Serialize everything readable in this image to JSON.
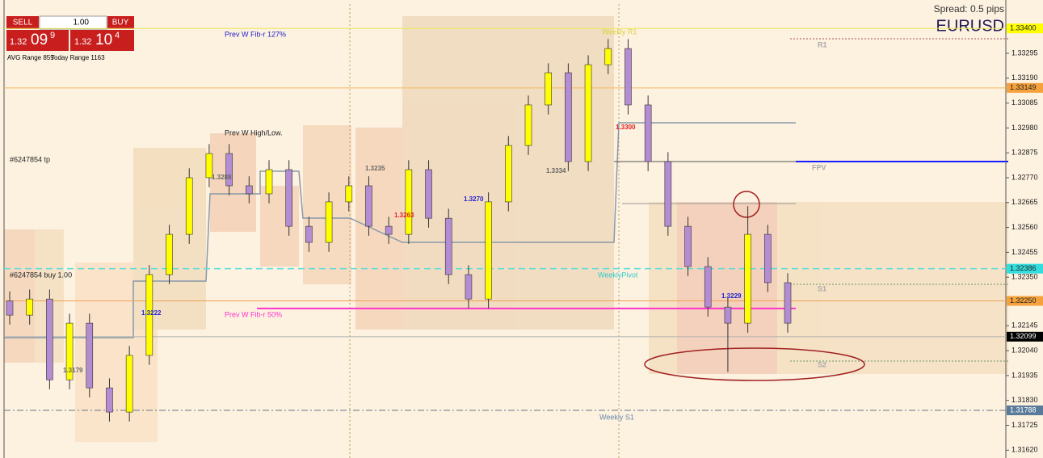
{
  "panel": {
    "sell": "SELL",
    "buy": "BUY",
    "lots": "1.00",
    "bid": {
      "prefix": "1.32",
      "big": "09",
      "sup": "9"
    },
    "ask": {
      "prefix": "1.32",
      "big": "10",
      "sup": "4"
    },
    "avg_range": "AVG Range 859",
    "today_range": "Today Range 1163"
  },
  "symbol": "EURUSD",
  "spread": "Spread: 0.5 pips",
  "chart_data": {
    "type": "candlestick",
    "ylim": [
      1.31587,
      1.3352
    ],
    "yticks": [
      {
        "value": 1.33295,
        "label": "1.33295"
      },
      {
        "value": 1.3319,
        "label": "1.33190"
      },
      {
        "value": 1.33085,
        "label": "1.33085"
      },
      {
        "value": 1.3298,
        "label": "1.32980"
      },
      {
        "value": 1.32875,
        "label": "1.32875"
      },
      {
        "value": 1.3277,
        "label": "1.32770"
      },
      {
        "value": 1.32665,
        "label": "1.32665"
      },
      {
        "value": 1.3256,
        "label": "1.32560"
      },
      {
        "value": 1.32455,
        "label": "1.32455"
      },
      {
        "value": 1.3235,
        "label": "1.32350"
      },
      {
        "value": 1.32145,
        "label": "1.32145"
      },
      {
        "value": 1.3204,
        "label": "1.32040"
      },
      {
        "value": 1.31935,
        "label": "1.31935"
      },
      {
        "value": 1.3183,
        "label": "1.31830"
      },
      {
        "value": 1.31725,
        "label": "1.31725"
      },
      {
        "value": 1.3162,
        "label": "1.31620"
      }
    ],
    "candles": {
      "open": [
        1.3225,
        1.3219,
        1.32258,
        1.31917,
        1.32156,
        1.31883,
        1.31781,
        1.3202,
        1.32361,
        1.32531,
        1.3277,
        1.32872,
        1.32736,
        1.32702,
        1.32804,
        1.32565,
        1.32497,
        1.32668,
        1.32736,
        1.32565,
        1.32531,
        1.32804,
        1.32599,
        1.32361,
        1.32258,
        1.32668,
        1.32906,
        1.33077,
        1.33213,
        1.32838,
        1.33247,
        1.33315,
        1.33077,
        1.32838,
        1.32565,
        1.32395,
        1.32224,
        1.32156,
        1.32531,
        1.32327
      ],
      "high": [
        1.3229,
        1.32298,
        1.32298,
        1.32196,
        1.32196,
        1.31923,
        1.3206,
        1.32401,
        1.32571,
        1.3281,
        1.32912,
        1.32912,
        1.32776,
        1.32844,
        1.32844,
        1.32605,
        1.32708,
        1.32776,
        1.32776,
        1.32605,
        1.32844,
        1.32844,
        1.32639,
        1.32401,
        1.32708,
        1.32946,
        1.33117,
        1.33253,
        1.33253,
        1.33287,
        1.33355,
        1.33355,
        1.33117,
        1.32878,
        1.32605,
        1.32435,
        1.32264,
        1.3265,
        1.32571,
        1.32367
      ],
      "low": [
        1.3215,
        1.3215,
        1.31877,
        1.31877,
        1.31843,
        1.31741,
        1.31741,
        1.3198,
        1.32321,
        1.32491,
        1.3273,
        1.32696,
        1.32662,
        1.32662,
        1.32525,
        1.32457,
        1.32457,
        1.32628,
        1.32525,
        1.32491,
        1.32491,
        1.32559,
        1.32321,
        1.32218,
        1.32218,
        1.32628,
        1.32866,
        1.33037,
        1.32798,
        1.32798,
        1.33207,
        1.33037,
        1.32798,
        1.32525,
        1.32355,
        1.32184,
        1.3195,
        1.32116,
        1.32287,
        1.32116
      ],
      "close": [
        1.3219,
        1.32258,
        1.31917,
        1.32156,
        1.31883,
        1.31781,
        1.3202,
        1.32361,
        1.32531,
        1.3277,
        1.32872,
        1.32736,
        1.32702,
        1.32804,
        1.32565,
        1.32497,
        1.32668,
        1.32736,
        1.32565,
        1.32531,
        1.32804,
        1.32599,
        1.32361,
        1.32258,
        1.32668,
        1.32906,
        1.33077,
        1.33213,
        1.32838,
        1.33247,
        1.33315,
        1.33077,
        1.32838,
        1.32565,
        1.32395,
        1.32224,
        1.32156,
        1.32531,
        1.32327,
        1.32156
      ],
      "up_color": "#ffff00",
      "down_color": "#b48cd2"
    },
    "price_tags": [
      {
        "value": 1.334,
        "label": "1.33400",
        "color": "#ffff00",
        "line": "#e8e85a"
      },
      {
        "value": 1.33149,
        "label": "1.33149",
        "color": "#f5a23c",
        "line": "#f5b860"
      },
      {
        "value": 1.32386,
        "label": "1.32386",
        "color": "#33dddd",
        "line": "#55dddd"
      },
      {
        "value": 1.3225,
        "label": "1.32250",
        "color": "#f5a23c",
        "line": "#f0a050"
      },
      {
        "value": 1.32099,
        "label": "1.32099",
        "color": "#000000",
        "line": "#b0b0b0"
      },
      {
        "value": 1.31788,
        "label": "1.31788",
        "color": "#5a7a9a",
        "line": "#667788"
      }
    ],
    "fib_50": {
      "value": 1.32218,
      "color": "#ff33cc"
    },
    "annotations": [
      "Prev W Fib-r 127%",
      "Prev W High/Low.",
      "#6247854 tp",
      "#6247854 buy 1.00",
      "WeeklyPivot",
      "Prev W Fib-r 50%",
      "Weekly S1",
      "Weekly R1",
      "R1",
      "FPV",
      "S1",
      "S2"
    ],
    "price_labels": [
      "1.3222",
      "1.3270",
      "1.3229",
      "1.3300",
      "1.3263",
      "1.3179",
      "1.3288",
      "1.3334",
      "1.3235"
    ]
  }
}
